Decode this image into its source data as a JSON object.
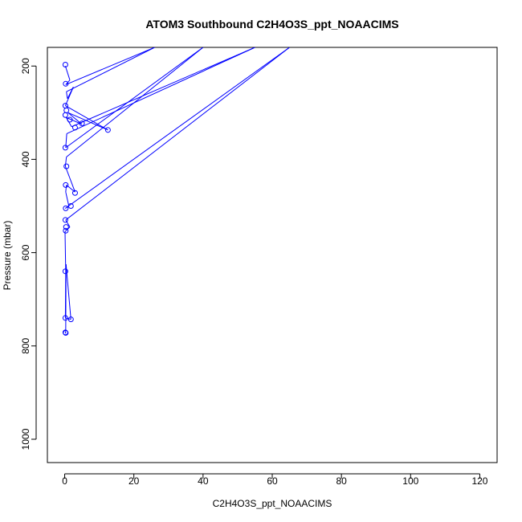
{
  "chart_data": {
    "type": "line",
    "title": "ATOM3 Southbound C2H4O3S_ppt_NOAACIMS",
    "xlabel": "C2H4O3S_ppt_NOAACIMS",
    "ylabel": "Pressure (mbar)",
    "xlim": [
      -5,
      125
    ],
    "ylim": [
      1050,
      160
    ],
    "y_inverted": true,
    "x_ticks": [
      0,
      20,
      40,
      60,
      80,
      100,
      120
    ],
    "y_ticks": [
      200,
      400,
      600,
      800,
      1000
    ],
    "grid": false,
    "legend": "none",
    "series": [
      {
        "color": "#0000ff",
        "x": [
          0.2,
          1.5,
          0.3,
          26,
          0.5,
          0.8,
          2.5,
          0.2,
          12.5,
          1,
          5,
          0.4,
          2,
          55,
          0.6,
          0.3,
          40,
          0.5,
          0.2,
          3,
          0.5,
          0.3,
          1.2,
          0.2,
          65,
          0.3,
          1.5,
          0.1,
          0.3,
          0.2,
          1.8,
          0.4,
          0.3,
          0.2,
          0.3,
          0.2
        ],
        "y": [
          200,
          230,
          240,
          160,
          255,
          270,
          245,
          285,
          337,
          300,
          325,
          310,
          330,
          160,
          345,
          375,
          160,
          395,
          415,
          470,
          455,
          470,
          500,
          505,
          160,
          530,
          545,
          555,
          640,
          740,
          743,
          625,
          770,
          773,
          772,
          770
        ]
      }
    ],
    "points": {
      "x": [
        0.2,
        0.3,
        0.2,
        0.5,
        0.2,
        1.5,
        12.5,
        5,
        3,
        0.2,
        0.5,
        0.3,
        3,
        0.3,
        1.8,
        0.2,
        0.4,
        0.3,
        0.2,
        0.2,
        1.8,
        0.2,
        0.3
      ],
      "y": [
        197,
        238,
        285,
        295,
        305,
        315,
        337,
        323,
        332,
        375,
        415,
        455,
        472,
        505,
        500,
        530,
        545,
        553,
        640,
        740,
        743,
        771,
        772
      ]
    }
  }
}
